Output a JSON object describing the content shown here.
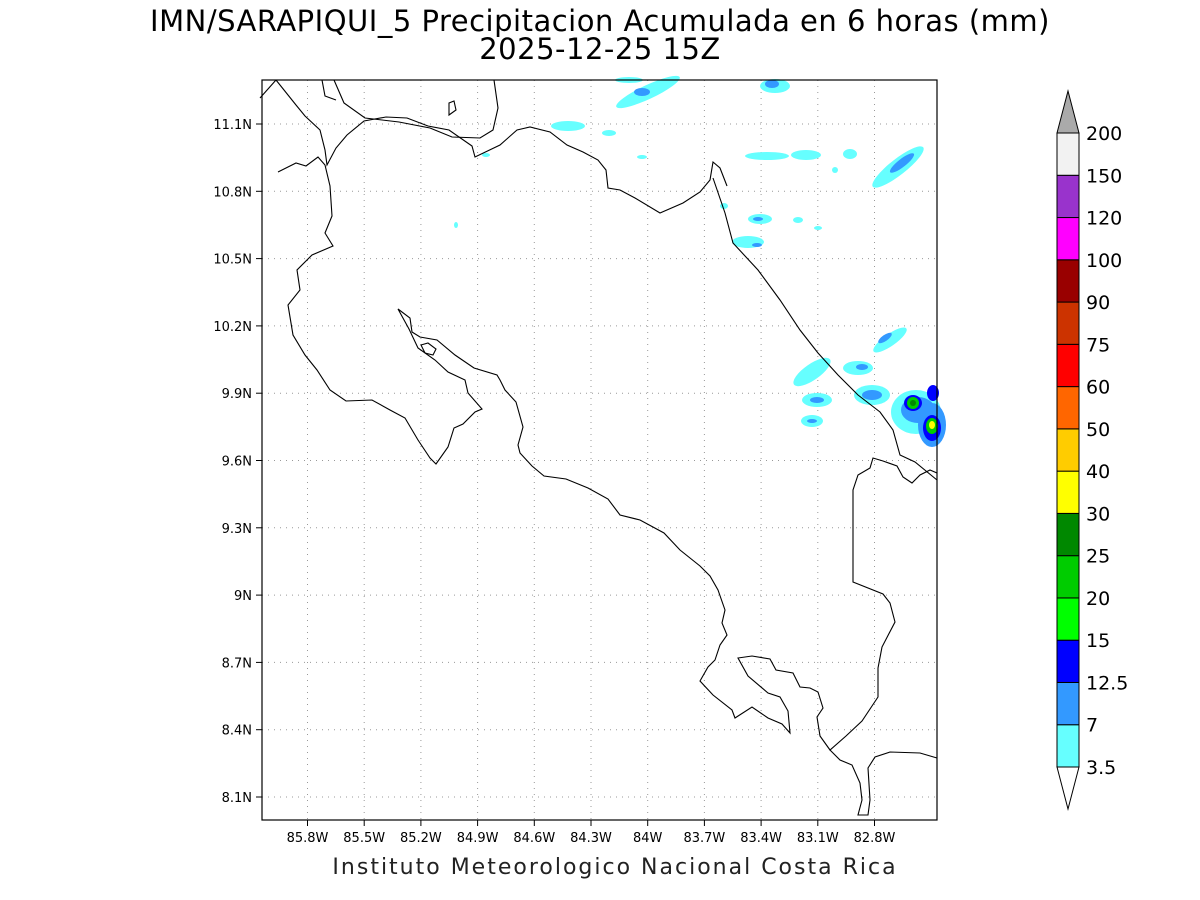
{
  "title_line1": "IMN/SARAPIQUI_5 Precipitacion Acumulada en 6 horas (mm)",
  "title_line2": "2025-12-25 15Z",
  "footer": "Instituto Meteorologico Nacional Costa Rica",
  "map": {
    "lon_ticks": [
      "85.8W",
      "85.5W",
      "85.2W",
      "84.9W",
      "84.6W",
      "84.3W",
      "84W",
      "83.7W",
      "83.4W",
      "83.1W",
      "82.8W"
    ],
    "lat_ticks": [
      "11.1N",
      "10.8N",
      "10.5N",
      "10.2N",
      "9.9N",
      "9.6N",
      "9.3N",
      "9N",
      "8.7N",
      "8.4N",
      "8.1N"
    ],
    "lon_range": [
      "86.0W",
      "82.6W"
    ],
    "lat_range": [
      "8.0N",
      "11.3N"
    ]
  },
  "legend": {
    "labels": [
      "3.5",
      "7",
      "12.5",
      "15",
      "20",
      "25",
      "30",
      "40",
      "50",
      "60",
      "75",
      "90",
      "100",
      "120",
      "150",
      "200"
    ],
    "colors": [
      "#66ffff",
      "#3399ff",
      "#0000ff",
      "#00ff00",
      "#00cc00",
      "#008800",
      "#ffff00",
      "#ffcc00",
      "#ff6600",
      "#ff0000",
      "#cc3300",
      "#990000",
      "#ff00ff",
      "#9933cc",
      "#f2f2f2",
      "#aaaaaa"
    ]
  }
}
